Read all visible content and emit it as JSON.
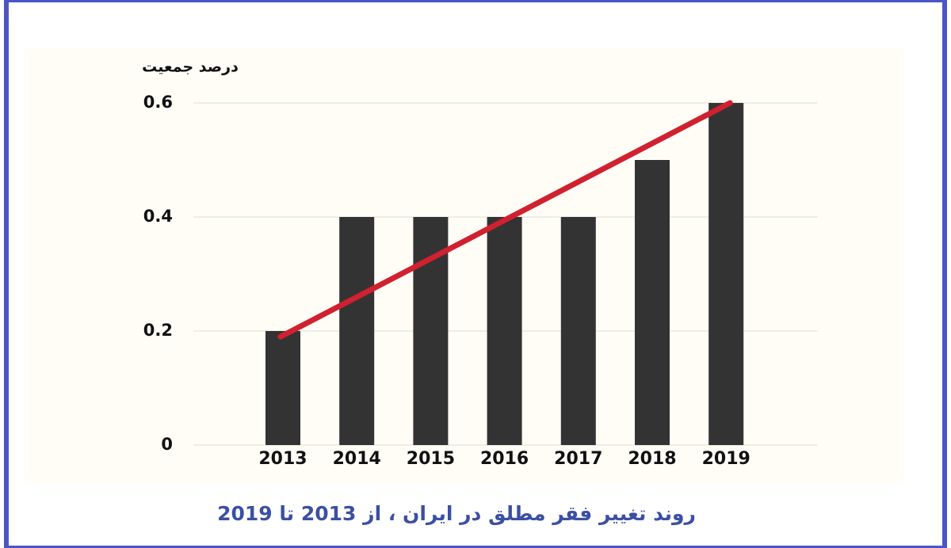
{
  "chart_data": {
    "type": "bar",
    "title": "روند تغییر فقر مطلق در ایران ، از 2013 تا 2019",
    "y_label": "درصد جمعیت",
    "categories": [
      "2013",
      "2014",
      "2015",
      "2016",
      "2017",
      "2018",
      "2019"
    ],
    "values": [
      0.2,
      0.4,
      0.4,
      0.4,
      0.4,
      0.5,
      0.6
    ],
    "color": "#333333",
    "trend_values": [
      0.19,
      0.6
    ],
    "trend_color": "#d1202f",
    "ylim": [
      0,
      0.6
    ],
    "yticks": [
      0,
      0.2,
      0.4,
      0.6
    ],
    "grid": true
  }
}
